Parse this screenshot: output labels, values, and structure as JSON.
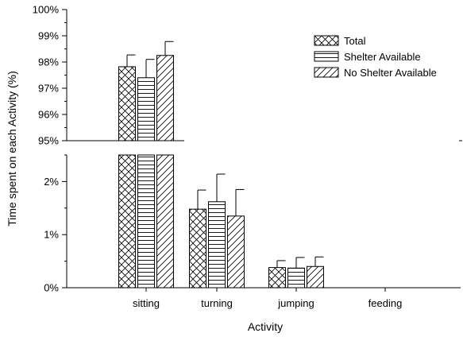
{
  "chart_data": {
    "type": "bar",
    "xlabel": "Activity",
    "ylabel": "Time spent on each Activity (%)",
    "categories": [
      "sitting",
      "turning",
      "jumping",
      "feeding"
    ],
    "series": [
      {
        "name": "Total",
        "pattern": "crosshatch",
        "values": [
          97.82,
          1.48,
          0.38,
          0.0
        ],
        "errors": [
          0.45,
          0.36,
          0.13,
          0.0
        ]
      },
      {
        "name": "Shelter Available",
        "pattern": "horizontal",
        "values": [
          97.4,
          1.62,
          0.37,
          0.0
        ],
        "errors": [
          0.7,
          0.52,
          0.2,
          0.0
        ]
      },
      {
        "name": "No Shelter Available",
        "pattern": "diagonal",
        "values": [
          98.25,
          1.35,
          0.4,
          0.0
        ],
        "errors": [
          0.53,
          0.5,
          0.18,
          0.0
        ]
      }
    ],
    "axis_break": true,
    "upper_ylim": [
      95,
      100
    ],
    "upper_ticks": [
      "95%",
      "96%",
      "97%",
      "98%",
      "99%",
      "100%"
    ],
    "lower_ylim": [
      0,
      2.5
    ],
    "lower_ticks": [
      "0%",
      "1%",
      "2%"
    ],
    "grid": false,
    "legend_position": "top-right"
  }
}
